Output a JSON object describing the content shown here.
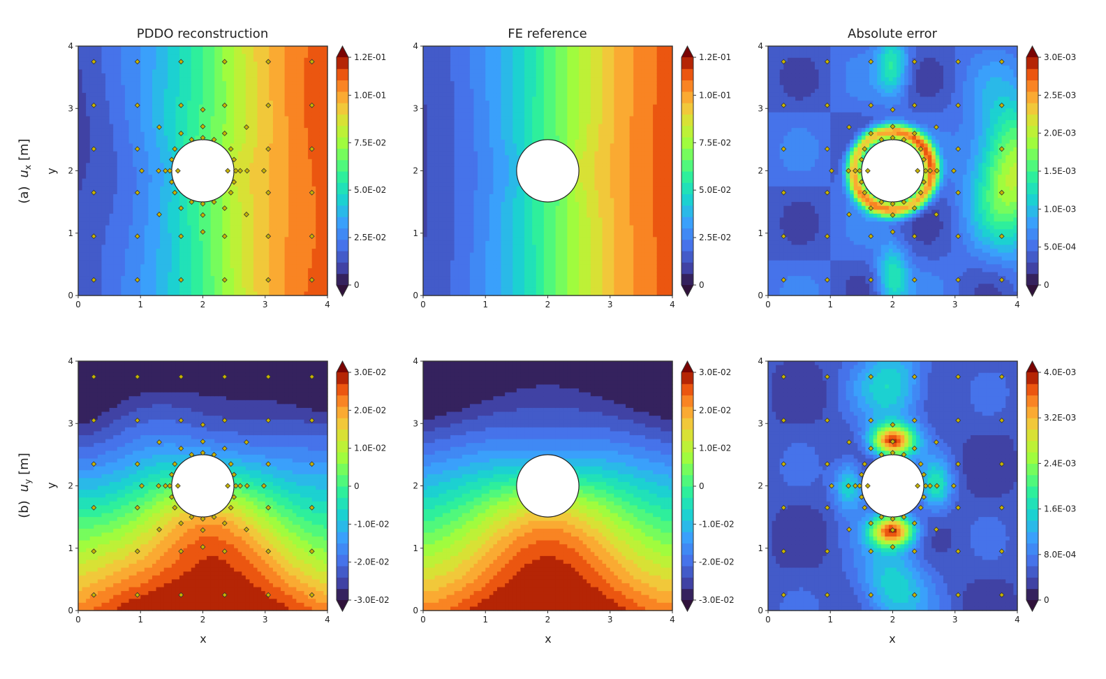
{
  "figure": {
    "column_titles": [
      "PDDO reconstruction",
      "FE reference",
      "Absolute error"
    ],
    "row_labels": [
      {
        "prefix": "(a)",
        "symbol": "u",
        "sub": "x",
        "unit": "[m]"
      },
      {
        "prefix": "(b)",
        "symbol": "u",
        "sub": "y",
        "unit": "[m]"
      }
    ],
    "xlabel": "x",
    "ylabel": "y"
  },
  "chart_data": {
    "type": "heatmap",
    "colormap": "turbo",
    "domain": {
      "xlim": [
        0,
        4
      ],
      "ylim": [
        0,
        4
      ],
      "hole_center": [
        2,
        2
      ],
      "hole_radius": 0.5
    },
    "axis_ticks": [
      "0",
      "1",
      "2",
      "3",
      "4"
    ],
    "sensor_points": [
      [
        0.25,
        0.25
      ],
      [
        0.95,
        0.25
      ],
      [
        1.65,
        0.25
      ],
      [
        2.35,
        0.25
      ],
      [
        3.05,
        0.25
      ],
      [
        3.75,
        0.25
      ],
      [
        0.25,
        0.95
      ],
      [
        0.95,
        0.95
      ],
      [
        1.65,
        0.95
      ],
      [
        2.35,
        0.95
      ],
      [
        3.05,
        0.95
      ],
      [
        3.75,
        0.95
      ],
      [
        0.25,
        1.65
      ],
      [
        0.95,
        1.65
      ],
      [
        3.05,
        1.65
      ],
      [
        3.75,
        1.65
      ],
      [
        0.25,
        2.35
      ],
      [
        0.95,
        2.35
      ],
      [
        3.05,
        2.35
      ],
      [
        3.75,
        2.35
      ],
      [
        0.25,
        3.05
      ],
      [
        0.95,
        3.05
      ],
      [
        1.65,
        3.05
      ],
      [
        2.35,
        3.05
      ],
      [
        3.05,
        3.05
      ],
      [
        3.75,
        3.05
      ],
      [
        0.25,
        3.75
      ],
      [
        0.95,
        3.75
      ],
      [
        1.65,
        3.75
      ],
      [
        2.35,
        3.75
      ],
      [
        3.05,
        3.75
      ],
      [
        3.75,
        3.75
      ],
      [
        2.0,
        2.98
      ],
      [
        2.0,
        2.71
      ],
      [
        2.0,
        2.53
      ],
      [
        2.0,
        1.47
      ],
      [
        2.0,
        1.29
      ],
      [
        2.0,
        1.02
      ],
      [
        1.02,
        2.0
      ],
      [
        1.29,
        2.0
      ],
      [
        1.47,
        2.0
      ],
      [
        2.53,
        2.0
      ],
      [
        2.71,
        2.0
      ],
      [
        2.98,
        2.0
      ],
      [
        1.65,
        2.6
      ],
      [
        2.35,
        2.6
      ],
      [
        1.65,
        1.4
      ],
      [
        2.35,
        1.4
      ],
      [
        1.3,
        2.7
      ],
      [
        2.7,
        2.7
      ],
      [
        1.3,
        1.3
      ],
      [
        2.7,
        1.3
      ],
      [
        1.82,
        2.5
      ],
      [
        2.18,
        2.5
      ],
      [
        1.82,
        1.5
      ],
      [
        2.18,
        1.5
      ],
      [
        1.5,
        2.18
      ],
      [
        2.5,
        2.18
      ],
      [
        1.5,
        1.82
      ],
      [
        2.5,
        1.82
      ],
      [
        1.55,
        2.35
      ],
      [
        2.45,
        2.35
      ],
      [
        1.55,
        1.65
      ],
      [
        2.45,
        1.65
      ],
      [
        1.6,
        2.0
      ],
      [
        2.4,
        2.0
      ],
      [
        2.6,
        2.0
      ],
      [
        1.4,
        2.0
      ]
    ],
    "panels": [
      {
        "id": "a1",
        "row": 0,
        "col": 0,
        "field": "ux",
        "variant": "pddo",
        "vmin": 0,
        "vmax": 0.12,
        "show_points": true
      },
      {
        "id": "a2",
        "row": 0,
        "col": 1,
        "field": "ux",
        "variant": "fe",
        "vmin": 0,
        "vmax": 0.12,
        "show_points": false
      },
      {
        "id": "a3",
        "row": 0,
        "col": 2,
        "field": "ux",
        "variant": "err",
        "vmin": 0,
        "vmax": 0.003,
        "show_points": true
      },
      {
        "id": "b1",
        "row": 1,
        "col": 0,
        "field": "uy",
        "variant": "pddo",
        "vmin": -0.03,
        "vmax": 0.03,
        "show_points": true
      },
      {
        "id": "b2",
        "row": 1,
        "col": 1,
        "field": "uy",
        "variant": "fe",
        "vmin": -0.03,
        "vmax": 0.03,
        "show_points": false
      },
      {
        "id": "b3",
        "row": 1,
        "col": 2,
        "field": "uy",
        "variant": "err",
        "vmin": 0,
        "vmax": 0.004,
        "show_points": true
      }
    ],
    "colorbars": [
      {
        "panel": "a1",
        "vmin": 0,
        "vmax": 0.12,
        "ticks": [
          {
            "v": 0,
            "label": "0"
          },
          {
            "v": 0.025,
            "label": "2.5E-02"
          },
          {
            "v": 0.05,
            "label": "5.0E-02"
          },
          {
            "v": 0.075,
            "label": "7.5E-02"
          },
          {
            "v": 0.1,
            "label": "1.0E-01"
          },
          {
            "v": 0.12,
            "label": "1.2E-01"
          }
        ]
      },
      {
        "panel": "a2",
        "vmin": 0,
        "vmax": 0.12,
        "ticks": [
          {
            "v": 0,
            "label": "0"
          },
          {
            "v": 0.025,
            "label": "2.5E-02"
          },
          {
            "v": 0.05,
            "label": "5.0E-02"
          },
          {
            "v": 0.075,
            "label": "7.5E-02"
          },
          {
            "v": 0.1,
            "label": "1.0E-01"
          },
          {
            "v": 0.12,
            "label": "1.2E-01"
          }
        ]
      },
      {
        "panel": "a3",
        "vmin": 0,
        "vmax": 0.003,
        "ticks": [
          {
            "v": 0,
            "label": "0"
          },
          {
            "v": 0.0005,
            "label": "5.0E-04"
          },
          {
            "v": 0.001,
            "label": "1.0E-03"
          },
          {
            "v": 0.0015,
            "label": "1.5E-03"
          },
          {
            "v": 0.002,
            "label": "2.0E-03"
          },
          {
            "v": 0.0025,
            "label": "2.5E-03"
          },
          {
            "v": 0.003,
            "label": "3.0E-03"
          }
        ]
      },
      {
        "panel": "b1",
        "vmin": -0.03,
        "vmax": 0.03,
        "ticks": [
          {
            "v": -0.03,
            "label": "-3.0E-02"
          },
          {
            "v": -0.02,
            "label": "-2.0E-02"
          },
          {
            "v": -0.01,
            "label": "-1.0E-02"
          },
          {
            "v": 0,
            "label": "0"
          },
          {
            "v": 0.01,
            "label": "1.0E-02"
          },
          {
            "v": 0.02,
            "label": "2.0E-02"
          },
          {
            "v": 0.03,
            "label": "3.0E-02"
          }
        ]
      },
      {
        "panel": "b2",
        "vmin": -0.03,
        "vmax": 0.03,
        "ticks": [
          {
            "v": -0.03,
            "label": "-3.0E-02"
          },
          {
            "v": -0.02,
            "label": "-2.0E-02"
          },
          {
            "v": -0.01,
            "label": "-1.0E-02"
          },
          {
            "v": 0,
            "label": "0"
          },
          {
            "v": 0.01,
            "label": "1.0E-02"
          },
          {
            "v": 0.02,
            "label": "2.0E-02"
          },
          {
            "v": 0.03,
            "label": "3.0E-02"
          }
        ]
      },
      {
        "panel": "b3",
        "vmin": 0,
        "vmax": 0.004,
        "ticks": [
          {
            "v": 0,
            "label": "0"
          },
          {
            "v": 0.0008,
            "label": "8.0E-04"
          },
          {
            "v": 0.0016,
            "label": "1.6E-03"
          },
          {
            "v": 0.0024,
            "label": "2.4E-03"
          },
          {
            "v": 0.0032,
            "label": "3.2E-03"
          },
          {
            "v": 0.004,
            "label": "4.0E-03"
          }
        ]
      }
    ]
  }
}
